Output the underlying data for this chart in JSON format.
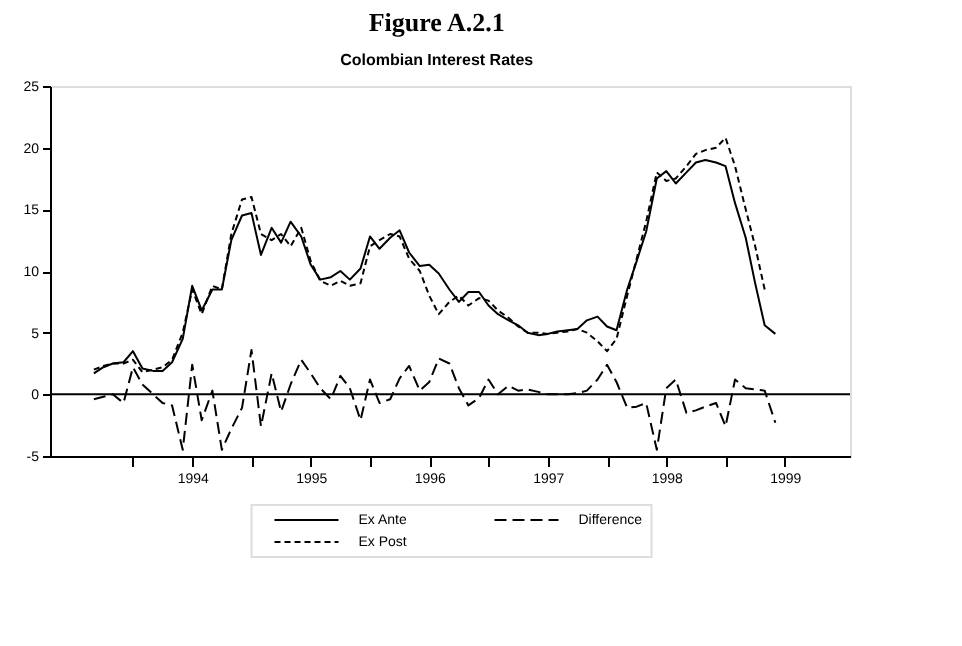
{
  "chart_data": {
    "type": "line",
    "title": "Figure A.2.1",
    "subtitle": "Colombian Interest Rates",
    "x": [
      1993.67,
      1993.75,
      1993.83,
      1993.92,
      1994.0,
      1994.08,
      1994.17,
      1994.25,
      1994.33,
      1994.42,
      1994.5,
      1994.58,
      1994.67,
      1994.75,
      1994.83,
      1994.92,
      1995.0,
      1995.08,
      1995.17,
      1995.25,
      1995.33,
      1995.42,
      1995.5,
      1995.58,
      1995.67,
      1995.75,
      1995.83,
      1995.92,
      1996.0,
      1996.08,
      1996.17,
      1996.25,
      1996.33,
      1996.42,
      1996.5,
      1996.58,
      1996.67,
      1996.75,
      1996.83,
      1996.92,
      1997.0,
      1997.08,
      1997.17,
      1997.25,
      1997.33,
      1997.42,
      1997.5,
      1997.58,
      1997.67,
      1997.75,
      1997.83,
      1997.92,
      1998.0,
      1998.08,
      1998.17,
      1998.25,
      1998.33,
      1998.42,
      1998.5,
      1998.58,
      1998.67,
      1998.75,
      1998.83,
      1998.92,
      1999.0,
      1999.08,
      1999.17,
      1999.25,
      1999.33,
      1999.42
    ],
    "series": [
      {
        "name": "Ex Ante",
        "color": "#000000",
        "line_style": "solid",
        "values": [
          1.7,
          2.2,
          2.5,
          2.6,
          3.5,
          2.1,
          1.9,
          1.9,
          2.6,
          4.5,
          8.8,
          6.8,
          8.5,
          8.5,
          12.5,
          14.5,
          14.7,
          11.3,
          13.5,
          12.3,
          14.0,
          12.8,
          10.5,
          9.3,
          9.5,
          10.0,
          9.3,
          10.2,
          12.8,
          11.8,
          12.7,
          13.3,
          11.5,
          10.4,
          10.5,
          9.8,
          8.5,
          7.5,
          8.3,
          8.3,
          7.2,
          6.5,
          6.0,
          5.6,
          5.0,
          4.8,
          4.9,
          5.1,
          5.2,
          5.3,
          6.0,
          6.3,
          5.5,
          5.2,
          8.5,
          10.8,
          13.2,
          17.5,
          18.1,
          17.1,
          18.0,
          18.8,
          19.0,
          18.8,
          18.5,
          15.5,
          12.7,
          9.0,
          5.6,
          4.9
        ]
      },
      {
        "name": "Ex Post",
        "color": "#000000",
        "line_style": "dotted",
        "values": [
          2.0,
          2.3,
          2.5,
          2.5,
          2.8,
          1.8,
          2.0,
          2.2,
          2.8,
          5.0,
          8.5,
          6.5,
          8.8,
          8.5,
          13.0,
          15.8,
          16.0,
          13.0,
          12.5,
          13.0,
          12.0,
          13.5,
          10.8,
          9.2,
          8.8,
          9.2,
          8.8,
          9.0,
          12.0,
          12.5,
          13.0,
          12.8,
          11.0,
          10.0,
          8.0,
          6.5,
          7.5,
          8.0,
          7.2,
          7.8,
          7.6,
          6.8,
          6.2,
          5.5,
          5.0,
          5.0,
          4.9,
          5.0,
          5.1,
          5.3,
          5.0,
          4.3,
          3.5,
          4.5,
          8.0,
          11.0,
          14.0,
          18.0,
          17.3,
          17.5,
          18.5,
          19.5,
          19.8,
          20.0,
          20.8,
          18.5,
          15.0,
          12.0,
          8.5,
          null
        ]
      },
      {
        "name": "Difference",
        "color": "#000000",
        "line_style": "dashed",
        "values": [
          -0.4,
          -0.2,
          0.0,
          -0.7,
          2.2,
          0.8,
          0.0,
          -0.7,
          -0.9,
          -4.5,
          2.4,
          -2.1,
          0.3,
          -4.5,
          -2.8,
          -1.1,
          3.6,
          -2.6,
          1.7,
          -1.4,
          0.8,
          2.8,
          1.7,
          0.5,
          -0.4,
          1.5,
          0.5,
          -2.1,
          1.2,
          -0.7,
          -0.4,
          1.3,
          2.3,
          0.3,
          1.0,
          2.9,
          2.5,
          0.5,
          -0.9,
          -0.3,
          1.2,
          0.0,
          0.7,
          0.3,
          0.4,
          0.2,
          0.0,
          0.0,
          0.0,
          0.1,
          0.3,
          1.2,
          2.4,
          1.0,
          -1.1,
          -1.0,
          -0.7,
          -4.5,
          0.5,
          1.2,
          -1.5,
          -1.3,
          -1.0,
          -0.7,
          -2.6,
          1.2,
          0.5,
          0.4,
          0.3,
          -2.3
        ]
      }
    ],
    "xlim": [
      1993.3,
      2000.05
    ],
    "xticks": [
      {
        "value": 1994,
        "label": null
      },
      {
        "value": 1994.5,
        "label": "1994"
      },
      {
        "value": 1995,
        "label": null
      },
      {
        "value": 1995.5,
        "label": "1995"
      },
      {
        "value": 1996,
        "label": null
      },
      {
        "value": 1996.5,
        "label": "1996"
      },
      {
        "value": 1997,
        "label": null
      },
      {
        "value": 1997.5,
        "label": "1997"
      },
      {
        "value": 1998,
        "label": null
      },
      {
        "value": 1998.5,
        "label": "1998"
      },
      {
        "value": 1999,
        "label": null
      },
      {
        "value": 1999.5,
        "label": "1999"
      }
    ],
    "ylim": [
      -5,
      25
    ],
    "yticks": [
      -5,
      0,
      5,
      10,
      15,
      20,
      25
    ],
    "ref_lines": [
      {
        "axis": "y",
        "value": 0,
        "color": "#000000"
      }
    ],
    "grid": false,
    "legend": "bottom"
  }
}
